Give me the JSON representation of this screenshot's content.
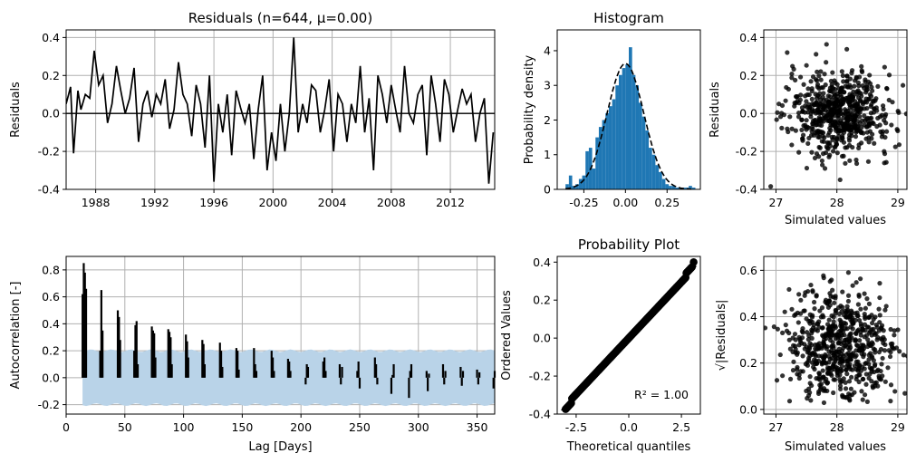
{
  "colors": {
    "line": "#000000",
    "hist": "#1f77b4",
    "band": "#b9d3e8",
    "grid": "#b0b0b0"
  },
  "chart_data": [
    {
      "type": "line",
      "title": "Residuals (n=644, μ=0.00)",
      "ylabel": "Residuals",
      "xlim": [
        1986.0,
        2015.0
      ],
      "ylim": [
        -0.4,
        0.44
      ],
      "xticks": [
        "1988",
        "1992",
        "1996",
        "2000",
        "2004",
        "2008",
        "2012"
      ],
      "yticks": [
        "-0.4",
        "-0.2",
        "0.0",
        "0.2",
        "0.4"
      ],
      "grid": true,
      "series": [
        {
          "x": [
            1986.0,
            1986.3,
            1986.5,
            1986.8,
            1987.0,
            1987.3,
            1987.6,
            1987.9,
            1988.2,
            1988.5,
            1988.8,
            1989.1,
            1989.4,
            1989.7,
            1990.0,
            1990.3,
            1990.6,
            1990.9,
            1991.2,
            1991.5,
            1991.8,
            1992.1,
            1992.4,
            1992.7,
            1993.0,
            1993.3,
            1993.6,
            1993.9,
            1994.2,
            1994.5,
            1994.8,
            1995.1,
            1995.4,
            1995.7,
            1996.0,
            1996.3,
            1996.6,
            1996.9,
            1997.2,
            1997.5,
            1997.8,
            1998.1,
            1998.4,
            1998.7,
            1999.0,
            1999.3,
            1999.6,
            1999.9,
            2000.2,
            2000.5,
            2000.8,
            2001.1,
            2001.4,
            2001.7,
            2002.0,
            2002.3,
            2002.6,
            2002.9,
            2003.2,
            2003.5,
            2003.8,
            2004.1,
            2004.4,
            2004.7,
            2005.0,
            2005.3,
            2005.6,
            2005.9,
            2006.2,
            2006.5,
            2006.8,
            2007.1,
            2007.4,
            2007.7,
            2008.0,
            2008.3,
            2008.6,
            2008.9,
            2009.2,
            2009.5,
            2009.8,
            2010.1,
            2010.4,
            2010.7,
            2011.0,
            2011.3,
            2011.6,
            2011.9,
            2012.2,
            2012.5,
            2012.8,
            2013.1,
            2013.4,
            2013.7,
            2014.0,
            2014.3,
            2014.6,
            2014.9
          ],
          "values": [
            0.05,
            0.14,
            -0.21,
            0.12,
            0.02,
            0.1,
            0.08,
            0.33,
            0.15,
            0.2,
            -0.05,
            0.05,
            0.25,
            0.12,
            0.0,
            0.08,
            0.24,
            -0.15,
            0.05,
            0.12,
            -0.02,
            0.1,
            0.05,
            0.18,
            -0.08,
            0.02,
            0.27,
            0.1,
            0.05,
            -0.12,
            0.15,
            0.05,
            -0.18,
            0.2,
            -0.36,
            0.05,
            -0.1,
            0.1,
            -0.22,
            0.12,
            0.03,
            -0.05,
            0.05,
            -0.24,
            0.02,
            0.2,
            -0.3,
            -0.1,
            -0.25,
            0.05,
            -0.2,
            0.0,
            0.4,
            -0.1,
            0.05,
            -0.05,
            0.15,
            0.12,
            -0.1,
            0.02,
            0.18,
            -0.2,
            0.1,
            0.05,
            -0.15,
            0.05,
            -0.05,
            0.25,
            -0.1,
            0.08,
            -0.3,
            0.2,
            0.1,
            -0.05,
            0.15,
            0.02,
            -0.1,
            0.25,
            0.0,
            -0.05,
            0.1,
            0.15,
            -0.22,
            0.2,
            0.05,
            -0.15,
            0.18,
            0.1,
            -0.1,
            0.02,
            0.13,
            0.05,
            0.1,
            -0.15,
            0.0,
            0.08,
            -0.37,
            -0.1
          ]
        }
      ],
      "hline": 0.0
    },
    {
      "type": "bar",
      "title": "Histogram",
      "ylabel": "Probability density",
      "xlim": [
        -0.41,
        0.45
      ],
      "ylim": [
        0,
        4.6
      ],
      "xticks": [
        "-0.25",
        "0.00",
        "0.25"
      ],
      "yticks": [
        "0",
        "1",
        "2",
        "3",
        "4"
      ],
      "bins": [
        -0.36,
        -0.34,
        -0.32,
        -0.3,
        -0.28,
        -0.26,
        -0.24,
        -0.22,
        -0.2,
        -0.18,
        -0.16,
        -0.14,
        -0.12,
        -0.1,
        -0.08,
        -0.06,
        -0.04,
        -0.02,
        0.0,
        0.02,
        0.04,
        0.06,
        0.08,
        0.1,
        0.12,
        0.14,
        0.16,
        0.18,
        0.2,
        0.22,
        0.24,
        0.26,
        0.28,
        0.3,
        0.32,
        0.34,
        0.36,
        0.38,
        0.4
      ],
      "values": [
        0.15,
        0.4,
        0.1,
        0.15,
        0.3,
        0.4,
        1.1,
        1.2,
        0.6,
        1.5,
        1.8,
        2.0,
        2.2,
        2.4,
        2.6,
        3.0,
        3.3,
        3.5,
        3.6,
        4.1,
        3.3,
        3.0,
        2.5,
        2.1,
        1.7,
        1.2,
        1.0,
        0.7,
        0.5,
        0.3,
        0.15,
        0.1,
        0.1,
        0.05,
        0.05,
        0.05,
        0.05,
        0.1,
        0.05
      ],
      "fit_curve": {
        "mean": 0.0,
        "std": 0.11
      }
    },
    {
      "type": "scatter",
      "xlabel": "Simulated values",
      "ylabel": "Residuals",
      "xlim": [
        26.8,
        29.15
      ],
      "ylim": [
        -0.4,
        0.44
      ],
      "xticks": [
        "27",
        "28",
        "29"
      ],
      "yticks": [
        "-0.4",
        "-0.2",
        "0.0",
        "0.2",
        "0.4"
      ]
    },
    {
      "type": "bar",
      "xlabel": "Lag [Days]",
      "ylabel": "Autocorrelation [-]",
      "xlim": [
        0,
        365
      ],
      "ylim": [
        -0.27,
        0.9
      ],
      "xticks": [
        "0",
        "50",
        "100",
        "150",
        "200",
        "250",
        "300",
        "350"
      ],
      "yticks": [
        "-0.2",
        "0.0",
        "0.2",
        "0.4",
        "0.6",
        "0.8"
      ],
      "lags": [
        14,
        15,
        16,
        17,
        29,
        30,
        31,
        44,
        45,
        46,
        58,
        59,
        60,
        61,
        73,
        74,
        75,
        76,
        87,
        88,
        89,
        90,
        102,
        103,
        104,
        116,
        117,
        118,
        131,
        132,
        133,
        145,
        146,
        147,
        160,
        161,
        162,
        175,
        176,
        177,
        189,
        190,
        191,
        204,
        205,
        206,
        219,
        220,
        221,
        233,
        234,
        235,
        248,
        249,
        250,
        263,
        264,
        265,
        277,
        278,
        279,
        292,
        293,
        294,
        307,
        308,
        309,
        321,
        322,
        323,
        336,
        337,
        338,
        350,
        351,
        352,
        364,
        365
      ],
      "values": [
        0.62,
        0.85,
        0.78,
        0.66,
        0.2,
        0.65,
        0.35,
        0.5,
        0.45,
        0.28,
        0.2,
        0.39,
        0.42,
        0.1,
        0.38,
        0.35,
        0.33,
        0.15,
        0.36,
        0.34,
        0.3,
        0.1,
        0.32,
        0.27,
        0.15,
        0.28,
        0.25,
        0.1,
        0.26,
        0.2,
        0.08,
        0.22,
        0.2,
        0.06,
        0.22,
        0.1,
        0.05,
        0.2,
        0.15,
        0.05,
        0.14,
        0.12,
        0.05,
        -0.05,
        0.1,
        0.08,
        0.12,
        0.15,
        0.05,
        0.1,
        -0.05,
        0.08,
        0.05,
        0.12,
        -0.08,
        0.15,
        0.1,
        -0.05,
        -0.12,
        0.02,
        0.1,
        -0.15,
        0.05,
        0.1,
        0.05,
        -0.1,
        0.03,
        0.1,
        -0.05,
        0.05,
        0.08,
        -0.06,
        0.05,
        0.06,
        -0.05,
        0.04,
        -0.08,
        0.05
      ],
      "confidence_band": 0.2
    },
    {
      "type": "scatter",
      "title": "Probability Plot",
      "xlabel": "Theoretical quantiles",
      "ylabel": "Ordered Values",
      "xlim": [
        -3.4,
        3.4
      ],
      "ylim": [
        -0.4,
        0.43
      ],
      "xticks": [
        "-2.5",
        "0.0",
        "2.5"
      ],
      "yticks": [
        "-0.4",
        "-0.2",
        "0.0",
        "0.2",
        "0.4"
      ],
      "annotation": "R² = 1.00",
      "fit_line": [
        [
          -3.2,
          -0.38
        ],
        [
          3.2,
          0.38
        ]
      ]
    },
    {
      "type": "scatter",
      "xlabel": "Simulated values",
      "ylabel": "√|Residuals|",
      "xlim": [
        26.8,
        29.15
      ],
      "ylim": [
        -0.02,
        0.66
      ],
      "xticks": [
        "27",
        "28",
        "29"
      ],
      "yticks": [
        "0.0",
        "0.2",
        "0.4",
        "0.6"
      ]
    }
  ]
}
